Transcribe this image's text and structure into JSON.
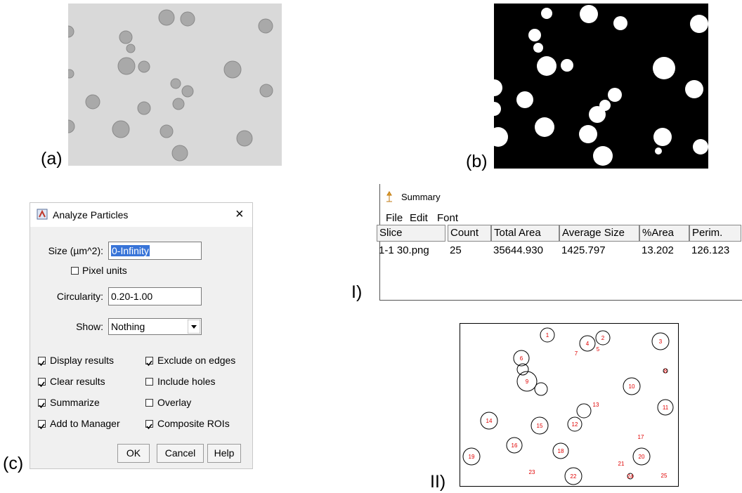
{
  "panel_labels": {
    "a": "(a)",
    "b": "(b)",
    "c": "(c)",
    "I": "I)",
    "II": "II)"
  },
  "dialog": {
    "title": "Analyze Particles",
    "fields": [
      {
        "label": "Size (µm^2):",
        "value": "0-Infinity"
      },
      {
        "label": "Circularity:",
        "value": "0.20-1.00"
      }
    ],
    "pixel_units": {
      "label": "Pixel units",
      "checked": false
    },
    "show": {
      "label": "Show:",
      "value": "Nothing"
    },
    "options": [
      {
        "label": "Display results",
        "checked": true
      },
      {
        "label": "Exclude on edges",
        "checked": true
      },
      {
        "label": "Clear results",
        "checked": true
      },
      {
        "label": "Include holes",
        "checked": false
      },
      {
        "label": "Summarize",
        "checked": true
      },
      {
        "label": "Overlay",
        "checked": false
      },
      {
        "label": "Add to Manager",
        "checked": true
      },
      {
        "label": "Composite ROIs",
        "checked": true
      }
    ],
    "buttons": [
      "OK",
      "Cancel",
      "Help"
    ]
  },
  "summary": {
    "title": "Summary",
    "menu": [
      "File",
      "Edit",
      "Font"
    ],
    "columns": [
      "Slice",
      "Count",
      "Total Area",
      "Average Size",
      "%Area",
      "Perim."
    ],
    "rows": [
      [
        "1-1 30.png",
        "25",
        "35644.930",
        "1425.797",
        "13.202",
        "126.123"
      ]
    ]
  },
  "outlines": {
    "labels": [
      "1",
      "2",
      "3",
      "4",
      "5",
      "6",
      "7",
      "8",
      "9",
      "10",
      "11",
      "12",
      "13",
      "14",
      "15",
      "16",
      "17",
      "18",
      "19",
      "20",
      "21",
      "22",
      "23",
      "24",
      "25"
    ]
  }
}
